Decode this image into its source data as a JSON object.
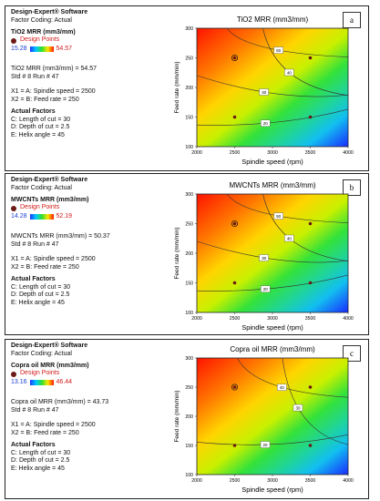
{
  "panels": [
    {
      "letter": "a",
      "software": "Design-Expert® Software",
      "coding": "Factor Coding: Actual",
      "response": "TiO2 MRR (mm3/mm)",
      "design_points_label": "Design Points",
      "range_low": "15.28",
      "range_high": "54.57",
      "readout_value": "TiO2 MRR (mm3/mm) = 54.57",
      "readout_std": "Std # 8 Run # 47",
      "x1": "X1 = A: Spindle speed = 2500",
      "x2": "X2 = B: Feed rate = 250",
      "actual_title": "Actual Factors",
      "factors": [
        "C: Length of cut = 30",
        "D: Depth of cut = 2.5",
        "E: Helix angle = 45"
      ]
    },
    {
      "letter": "b",
      "software": "Design-Expert® Software",
      "coding": "Factor Coding: Actual",
      "response": "MWCNTs MRR (mm3/mm)",
      "design_points_label": "Design Points",
      "range_low": "14.28",
      "range_high": "52.19",
      "readout_value": "MWCNTs MRR (mm3/mm) = 50.37",
      "readout_std": "Std # 8 Run # 47",
      "x1": "X1 = A: Spindle speed = 2500",
      "x2": "X2 = B: Feed rate = 250",
      "actual_title": "Actual Factors",
      "factors": [
        "C: Length of cut = 30",
        "D: Depth of cut = 2.5",
        "E: Helix angle = 45"
      ]
    },
    {
      "letter": "c",
      "software": "Design-Expert® Software",
      "coding": "Factor Coding: Actual",
      "response": "Copra oil MRR (mm3/mm)",
      "design_points_label": "Design Points",
      "range_low": "13.16",
      "range_high": "46.44",
      "readout_value": "Copra oil MRR (mm3/mm) = 43.73",
      "readout_std": "Std # 8 Run # 47",
      "x1": "X1 = A: Spindle speed = 2500",
      "x2": "X2 = B: Feed rate = 250",
      "actual_title": "Actual Factors",
      "factors": [
        "C: Length of cut = 30",
        "D: Depth of cut = 2.5",
        "E: Helix angle = 45"
      ]
    }
  ],
  "colors": {
    "point": "#6b1a16",
    "contour": "#333333",
    "frame": "#222222"
  },
  "chart_data": [
    {
      "type": "heatmap",
      "title": "TiO2 MRR (mm3/mm)",
      "xlabel": "Spindle speed (rpm)",
      "ylabel": "Feed rate (mm/min)",
      "xlim": [
        2000,
        4000
      ],
      "ylim": [
        100,
        300
      ],
      "xticks": [
        2000,
        2500,
        3000,
        3500,
        4000
      ],
      "yticks": [
        100,
        150,
        200,
        250,
        300
      ],
      "contour_levels": [
        50,
        40,
        30,
        20
      ],
      "design_points": [
        {
          "x": 2500,
          "y": 250,
          "highlighted": true
        },
        {
          "x": 3500,
          "y": 250
        },
        {
          "x": 2500,
          "y": 150
        },
        {
          "x": 3500,
          "y": 150
        }
      ],
      "grid": false
    },
    {
      "type": "heatmap",
      "title": "MWCNTs MRR (mm3/mm)",
      "xlabel": "Spindle speed (rpm)",
      "ylabel": "Feed rate (mm/min)",
      "xlim": [
        2000,
        4000
      ],
      "ylim": [
        100,
        300
      ],
      "xticks": [
        2000,
        2500,
        3000,
        3500,
        4000
      ],
      "yticks": [
        100,
        150,
        200,
        250,
        300
      ],
      "contour_levels": [
        50,
        40,
        30,
        20
      ],
      "design_points": [
        {
          "x": 2500,
          "y": 250,
          "highlighted": true
        },
        {
          "x": 3500,
          "y": 250
        },
        {
          "x": 2500,
          "y": 150
        },
        {
          "x": 3500,
          "y": 150
        }
      ],
      "grid": false
    },
    {
      "type": "heatmap",
      "title": "Copra oil  MRR (mm3/mm)",
      "xlabel": "Spindle speed (rpm)",
      "ylabel": "Feed rate (mm/min)",
      "xlim": [
        2000,
        4000
      ],
      "ylim": [
        100,
        300
      ],
      "xticks": [
        2000,
        2500,
        3000,
        3500,
        4000
      ],
      "yticks": [
        100,
        150,
        200,
        250,
        300
      ],
      "contour_levels": [
        40,
        30,
        20
      ],
      "design_points": [
        {
          "x": 2500,
          "y": 250,
          "highlighted": true
        },
        {
          "x": 3500,
          "y": 250
        },
        {
          "x": 2500,
          "y": 150
        },
        {
          "x": 3500,
          "y": 150
        }
      ],
      "grid": false
    }
  ]
}
